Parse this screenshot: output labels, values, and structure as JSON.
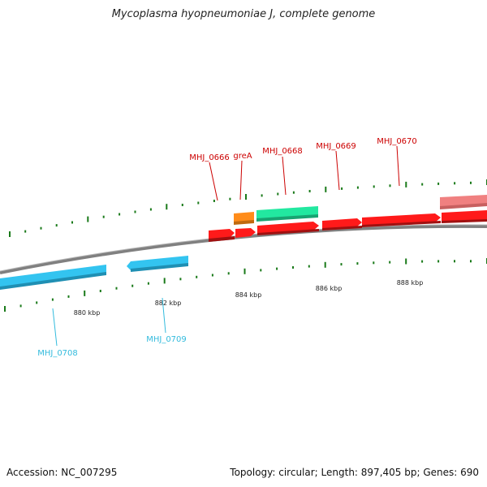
{
  "title": "Mycoplasma hyopneumoniae J, complete genome",
  "footer": {
    "accession": "Accession: NC_007295",
    "summary": "Topology: circular; Length: 897,405 bp; Genes: 690"
  },
  "colors": {
    "backbone": "#808080",
    "forward_red": "#ff1a1a",
    "forward_light": "#f08080",
    "green": "#22e8a0",
    "orange": "#ff8c1a",
    "reverse_blue": "#33c4f0",
    "label_red": "#cc0000",
    "label_blue": "#33bbdd",
    "tick_green": "#1a7a1a"
  },
  "scale_labels": [
    "880 kbp",
    "882 kbp",
    "884 kbp",
    "886 kbp",
    "888 kbp"
  ],
  "genes_forward": [
    {
      "label": "MHJ_0666",
      "color": "red"
    },
    {
      "label": "greA",
      "color": "orange"
    },
    {
      "label": "MHJ_0668",
      "color": "green"
    },
    {
      "label": "MHJ_0669",
      "color": "red"
    },
    {
      "label": "MHJ_0670",
      "color": "red"
    }
  ],
  "genes_reverse": [
    {
      "label": "MHJ_0708",
      "color": "blue"
    },
    {
      "label": "MHJ_0709",
      "color": "blue"
    }
  ]
}
